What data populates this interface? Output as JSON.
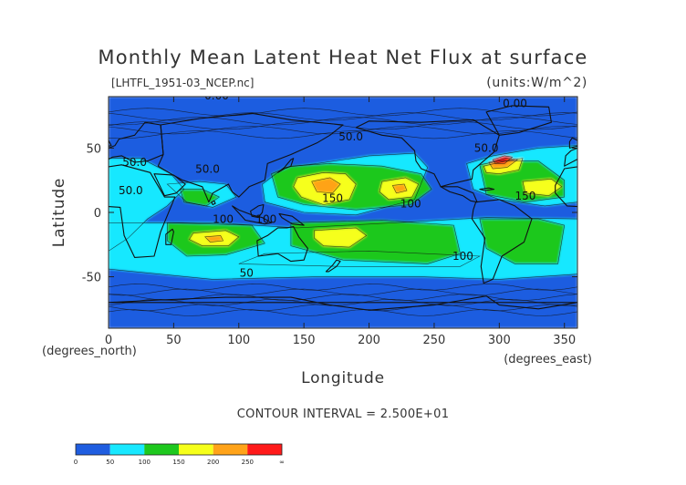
{
  "chart_data": {
    "type": "heatmap",
    "title": "Monthly Mean Latent Heat Net Flux at surface",
    "file_label": "[LHTFL_1951-03_NCEP.nc]",
    "units_label": "(units:W/m^2)",
    "xlabel": "Longitude",
    "ylabel": "Latitude",
    "x_unit_label": "(degrees_east)",
    "y_unit_label": "(degrees_north)",
    "xlim": [
      0,
      360
    ],
    "ylim": [
      -90,
      90
    ],
    "x_ticks": [
      0,
      50,
      100,
      150,
      200,
      250,
      300,
      350
    ],
    "y_ticks": [
      50,
      0,
      -50
    ],
    "contour_interval_text": "CONTOUR INTERVAL = 2.500E+01",
    "colorbar": {
      "colors": [
        "#1f5de0",
        "#18e8ff",
        "#1ec81e",
        "#f6ff1a",
        "#ffa319",
        "#ff1a1a"
      ],
      "labels": [
        "0",
        "50",
        "100",
        "150",
        "200",
        "250",
        "∞"
      ]
    },
    "contour_labels": [
      {
        "text": "0.00",
        "lon": 83,
        "lat": 88
      },
      {
        "text": "0.00",
        "lon": 312,
        "lat": 82
      },
      {
        "text": "50.0",
        "lon": 186,
        "lat": 56
      },
      {
        "text": "50.0",
        "lon": 20,
        "lat": 36
      },
      {
        "text": "50.0",
        "lon": 76,
        "lat": 31
      },
      {
        "text": "50.0",
        "lon": 290,
        "lat": 47
      },
      {
        "text": "50.0",
        "lon": 17,
        "lat": 14
      },
      {
        "text": "150",
        "lon": 172,
        "lat": 8
      },
      {
        "text": "150",
        "lon": 320,
        "lat": 10
      },
      {
        "text": "100",
        "lon": 232,
        "lat": 4
      },
      {
        "text": "100",
        "lon": 88,
        "lat": -8
      },
      {
        "text": "100",
        "lon": 121,
        "lat": -8
      },
      {
        "text": "100",
        "lon": 272,
        "lat": -37
      },
      {
        "text": "50",
        "lon": 106,
        "lat": -50
      }
    ],
    "features": {
      "pacific_max": {
        "lon": 170,
        "lat": 17,
        "approx_value": 190
      },
      "central_pacific_max": {
        "lon": 223,
        "lat": 18,
        "approx_value": 170
      },
      "gulf_stream_max": {
        "lon": 298,
        "lat": 36,
        "approx_value": 280
      },
      "south_indian_max": {
        "lon": 80,
        "lat": -19,
        "approx_value": 175
      },
      "south_pacific_max": {
        "lon": 175,
        "lat": -20,
        "approx_value": 170
      },
      "polar_values": 0
    }
  }
}
